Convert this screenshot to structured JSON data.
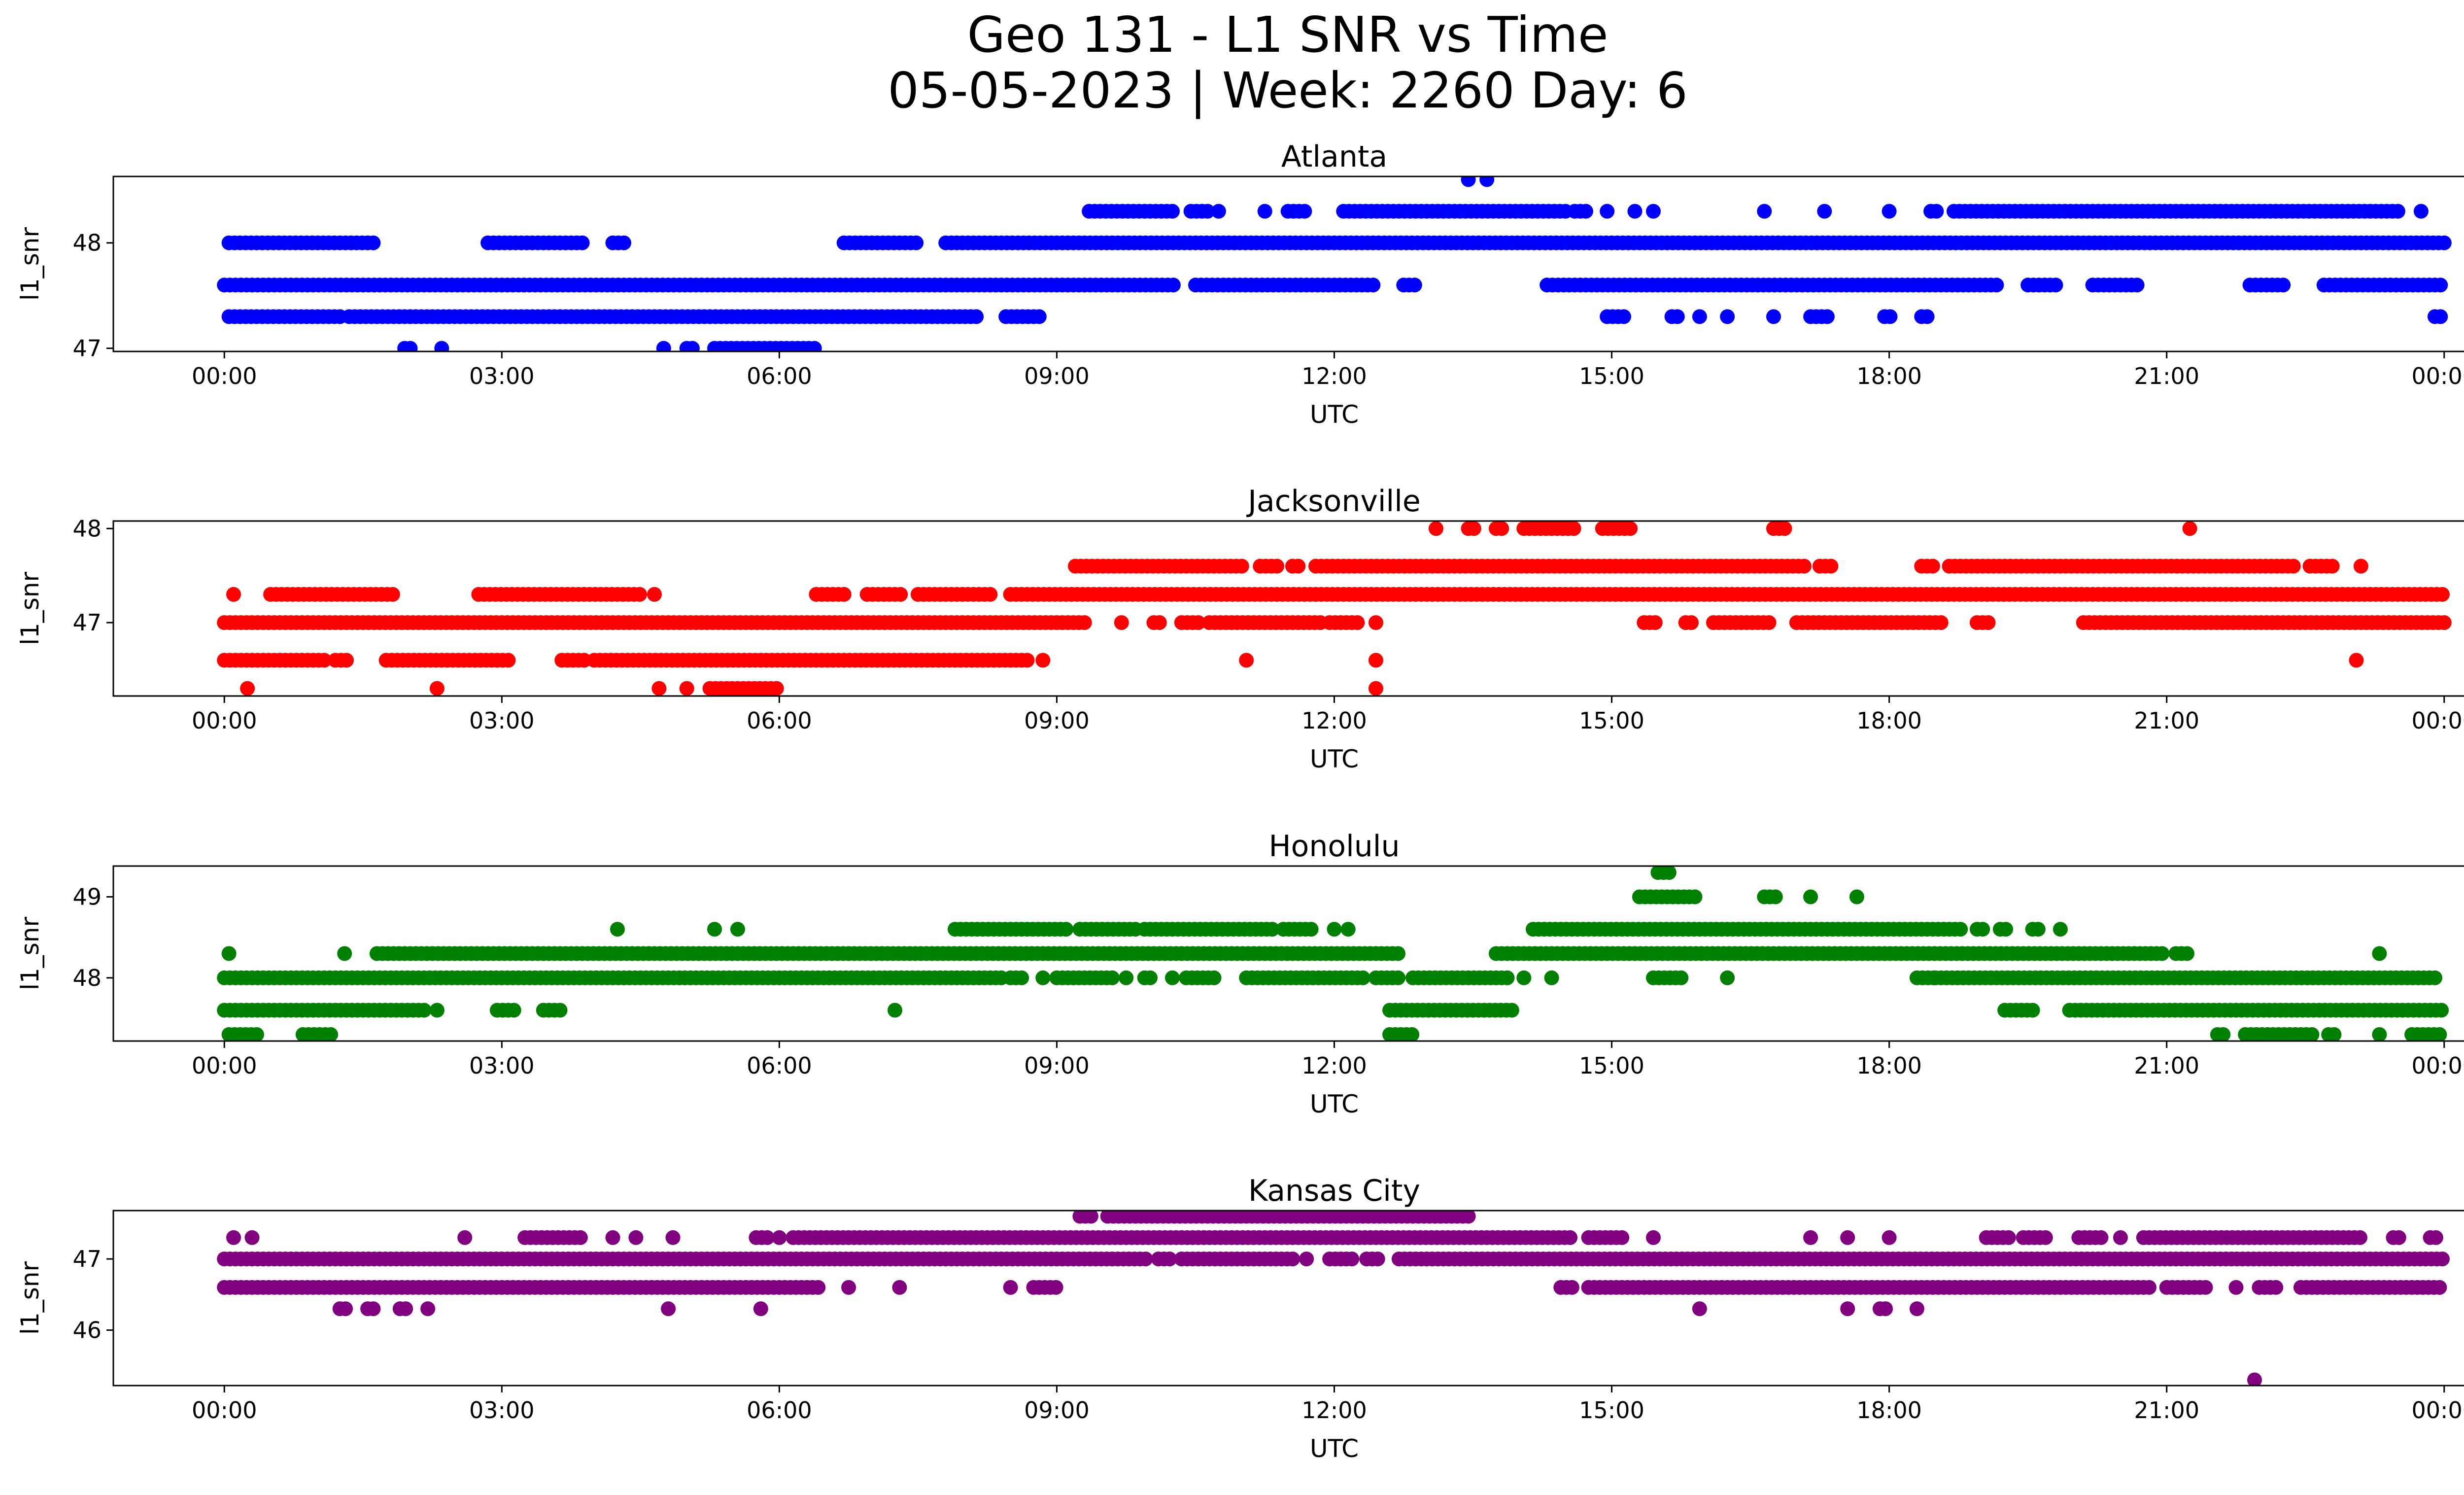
{
  "chart_data": {
    "type": "scatter",
    "title": "Geo 131 - L1 SNR vs Time",
    "subtitle": "05-05-2023 | Week: 2260 Day: 6",
    "xlabel": "UTC",
    "ylabel": "l1_snr",
    "x_tick_labels": [
      "00:00",
      "03:00",
      "06:00",
      "09:00",
      "12:00",
      "15:00",
      "18:00",
      "21:00",
      "00:00"
    ],
    "xlim_hours": [
      -1.2,
      25.2
    ],
    "grid": false,
    "legend": "none",
    "panels": [
      {
        "name": "Atlanta",
        "color": "#0000ff",
        "ylim": [
          46.97,
          48.63
        ],
        "y_ticks": [
          47,
          48
        ],
        "bands": [
          {
            "y": 48.0,
            "segments": [
              [
                0.05,
                1.65
              ],
              [
                2.85,
                3.9
              ],
              [
                4.2,
                4.35
              ],
              [
                6.7,
                7.5
              ],
              [
                7.8,
                24.0
              ]
            ]
          },
          {
            "y": 47.6,
            "segments": [
              [
                0.0,
                10.3
              ],
              [
                10.5,
                12.45
              ],
              [
                12.75,
                12.9
              ],
              [
                14.3,
                19.2
              ],
              [
                19.5,
                19.8
              ],
              [
                20.2,
                20.7
              ],
              [
                21.9,
                22.3
              ],
              [
                22.7,
                24.0
              ]
            ]
          },
          {
            "y": 47.3,
            "segments": [
              [
                0.05,
                1.25
              ],
              [
                1.35,
                7.6
              ],
              [
                7.65,
                8.15
              ],
              [
                8.45,
                8.85
              ],
              [
                14.95,
                15.15
              ],
              [
                15.65,
                15.75
              ],
              [
                15.95,
                16.0
              ],
              [
                16.25,
                16.3
              ],
              [
                16.75,
                16.8
              ],
              [
                17.15,
                17.35
              ],
              [
                17.95,
                18.05
              ],
              [
                18.35,
                18.45
              ],
              [
                23.9,
                24.0
              ]
            ]
          },
          {
            "y": 48.3,
            "segments": [
              [
                9.35,
                10.25
              ],
              [
                10.45,
                10.65
              ],
              [
                10.75,
                10.8
              ],
              [
                11.25,
                11.3
              ],
              [
                11.5,
                11.7
              ],
              [
                12.1,
                14.55
              ],
              [
                14.6,
                14.75
              ],
              [
                14.95,
                15.0
              ],
              [
                15.25,
                15.3
              ],
              [
                15.45,
                15.5
              ],
              [
                16.65,
                16.7
              ],
              [
                17.3,
                17.35
              ],
              [
                18.0,
                18.05
              ],
              [
                18.45,
                18.55
              ],
              [
                18.7,
                23.5
              ],
              [
                23.75,
                23.8
              ]
            ]
          },
          {
            "y": 47.0,
            "segments": [
              [
                1.95,
                2.05
              ],
              [
                2.35,
                2.4
              ],
              [
                4.75,
                4.8
              ],
              [
                5.0,
                5.1
              ],
              [
                5.3,
                6.4
              ]
            ]
          },
          {
            "y": 48.6,
            "segments": [
              [
                13.45,
                13.5
              ],
              [
                13.65,
                13.7
              ]
            ]
          }
        ]
      },
      {
        "name": "Jacksonville",
        "color": "#ff0000",
        "ylim": [
          46.22,
          48.08
        ],
        "y_ticks": [
          47,
          48
        ],
        "bands": [
          {
            "y": 47.0,
            "segments": [
              [
                0.0,
                9.3
              ],
              [
                9.7,
                9.75
              ],
              [
                10.05,
                10.15
              ],
              [
                10.35,
                10.55
              ],
              [
                10.65,
                11.85
              ],
              [
                11.95,
                12.3
              ],
              [
                12.45,
                12.5
              ],
              [
                15.35,
                15.5
              ],
              [
                15.8,
                15.9
              ],
              [
                16.1,
                16.7
              ],
              [
                17.0,
                18.6
              ],
              [
                18.95,
                19.1
              ],
              [
                20.1,
                24.0
              ]
            ]
          },
          {
            "y": 47.3,
            "segments": [
              [
                0.1,
                0.15
              ],
              [
                0.5,
                1.85
              ],
              [
                2.75,
                4.5
              ],
              [
                4.65,
                4.7
              ],
              [
                6.4,
                6.75
              ],
              [
                6.95,
                7.35
              ],
              [
                7.5,
                8.3
              ],
              [
                8.5,
                24.0
              ]
            ]
          },
          {
            "y": 46.6,
            "segments": [
              [
                0.0,
                1.1
              ],
              [
                1.2,
                1.35
              ],
              [
                1.75,
                3.1
              ],
              [
                3.65,
                3.9
              ],
              [
                4.0,
                8.7
              ],
              [
                8.85,
                8.9
              ],
              [
                11.05,
                11.1
              ],
              [
                12.45,
                12.5
              ],
              [
                23.05,
                23.1
              ]
            ]
          },
          {
            "y": 47.6,
            "segments": [
              [
                9.2,
                11.05
              ],
              [
                11.2,
                11.4
              ],
              [
                11.55,
                11.65
              ],
              [
                11.8,
                17.1
              ],
              [
                17.25,
                17.4
              ],
              [
                18.35,
                18.5
              ],
              [
                18.65,
                22.4
              ],
              [
                22.55,
                22.8
              ],
              [
                23.1,
                23.15
              ]
            ]
          },
          {
            "y": 48.0,
            "segments": [
              [
                13.1,
                13.15
              ],
              [
                13.45,
                13.55
              ],
              [
                13.75,
                13.85
              ],
              [
                14.05,
                14.6
              ],
              [
                14.9,
                15.25
              ],
              [
                16.75,
                16.9
              ],
              [
                21.25,
                21.3
              ]
            ]
          },
          {
            "y": 46.3,
            "segments": [
              [
                0.25,
                0.3
              ],
              [
                2.3,
                2.35
              ],
              [
                4.7,
                4.75
              ],
              [
                5.0,
                5.05
              ],
              [
                5.25,
                6.0
              ],
              [
                12.45,
                12.5
              ]
            ]
          }
        ]
      },
      {
        "name": "Honolulu",
        "color": "#008000",
        "ylim": [
          47.22,
          49.38
        ],
        "y_ticks": [
          48,
          49
        ],
        "bands": [
          {
            "y": 48.0,
            "segments": [
              [
                0.0,
                8.4
              ],
              [
                8.5,
                8.65
              ],
              [
                8.85,
                8.9
              ],
              [
                9.0,
                9.65
              ],
              [
                9.75,
                9.8
              ],
              [
                9.95,
                10.05
              ],
              [
                10.25,
                10.3
              ],
              [
                10.4,
                10.75
              ],
              [
                11.05,
                12.35
              ],
              [
                12.45,
                12.7
              ],
              [
                12.85,
                13.9
              ],
              [
                14.05,
                14.1
              ],
              [
                14.35,
                14.4
              ],
              [
                15.45,
                15.8
              ],
              [
                16.25,
                16.3
              ],
              [
                18.3,
                18.5
              ],
              [
                18.5,
                23.9
              ]
            ]
          },
          {
            "y": 48.3,
            "segments": [
              [
                0.05,
                0.1
              ],
              [
                1.3,
                1.35
              ],
              [
                1.65,
                12.7
              ],
              [
                13.75,
                21.0
              ],
              [
                21.1,
                21.25
              ],
              [
                23.3,
                23.35
              ]
            ]
          },
          {
            "y": 47.6,
            "segments": [
              [
                0.0,
                2.2
              ],
              [
                2.3,
                2.35
              ],
              [
                2.95,
                3.15
              ],
              [
                3.45,
                3.65
              ],
              [
                7.25,
                7.3
              ],
              [
                12.6,
                13.95
              ],
              [
                19.25,
                19.6
              ],
              [
                19.95,
                24.0
              ]
            ]
          },
          {
            "y": 48.6,
            "segments": [
              [
                4.25,
                4.3
              ],
              [
                5.3,
                5.35
              ],
              [
                5.55,
                5.6
              ],
              [
                7.9,
                9.15
              ],
              [
                9.25,
                9.85
              ],
              [
                9.95,
                11.35
              ],
              [
                11.45,
                11.75
              ],
              [
                12.0,
                12.05
              ],
              [
                12.15,
                12.2
              ],
              [
                14.15,
                18.8
              ],
              [
                18.95,
                19.05
              ],
              [
                19.2,
                19.3
              ],
              [
                19.55,
                19.65
              ],
              [
                19.85,
                19.9
              ]
            ]
          },
          {
            "y": 47.3,
            "segments": [
              [
                0.05,
                0.35
              ],
              [
                0.85,
                1.15
              ],
              [
                12.6,
                12.85
              ],
              [
                21.55,
                21.65
              ],
              [
                21.85,
                22.6
              ],
              [
                22.75,
                22.85
              ],
              [
                23.3,
                23.35
              ],
              [
                23.65,
                23.95
              ]
            ]
          },
          {
            "y": 49.0,
            "segments": [
              [
                15.3,
                15.95
              ],
              [
                16.65,
                16.8
              ],
              [
                17.15,
                17.2
              ],
              [
                17.65,
                17.7
              ]
            ]
          },
          {
            "y": 49.3,
            "segments": [
              [
                15.5,
                15.65
              ]
            ]
          }
        ]
      },
      {
        "name": "Kansas City",
        "color": "#800080",
        "ylim": [
          45.22,
          47.68
        ],
        "y_ticks": [
          46,
          47
        ],
        "bands": [
          {
            "y": 47.0,
            "segments": [
              [
                0.0,
                10.0
              ],
              [
                10.1,
                10.25
              ],
              [
                10.35,
                11.6
              ],
              [
                11.7,
                11.75
              ],
              [
                11.95,
                12.2
              ],
              [
                12.35,
                12.5
              ],
              [
                12.7,
                24.0
              ]
            ]
          },
          {
            "y": 46.6,
            "segments": [
              [
                0.0,
                6.45
              ],
              [
                6.75,
                6.8
              ],
              [
                7.3,
                7.35
              ],
              [
                8.5,
                8.55
              ],
              [
                8.75,
                9.0
              ],
              [
                14.45,
                14.6
              ],
              [
                14.75,
                20.85
              ],
              [
                21.0,
                21.45
              ],
              [
                21.75,
                21.8
              ],
              [
                22.0,
                22.2
              ],
              [
                22.45,
                24.0
              ]
            ]
          },
          {
            "y": 47.3,
            "segments": [
              [
                0.1,
                0.15
              ],
              [
                0.3,
                0.35
              ],
              [
                2.6,
                2.65
              ],
              [
                3.25,
                3.9
              ],
              [
                4.2,
                4.25
              ],
              [
                4.45,
                4.5
              ],
              [
                4.85,
                4.9
              ],
              [
                5.75,
                5.9
              ],
              [
                6.0,
                6.05
              ],
              [
                6.15,
                14.6
              ],
              [
                14.75,
                15.15
              ],
              [
                15.45,
                15.5
              ],
              [
                17.15,
                17.2
              ],
              [
                17.55,
                17.6
              ],
              [
                18.0,
                18.05
              ],
              [
                19.05,
                19.3
              ],
              [
                19.45,
                19.7
              ],
              [
                20.05,
                20.3
              ],
              [
                20.5,
                20.55
              ],
              [
                20.75,
                23.1
              ],
              [
                23.45,
                23.55
              ],
              [
                23.85,
                23.95
              ]
            ]
          },
          {
            "y": 47.6,
            "segments": [
              [
                9.25,
                9.4
              ],
              [
                9.55,
                13.45
              ]
            ]
          },
          {
            "y": 46.3,
            "segments": [
              [
                1.25,
                1.35
              ],
              [
                1.55,
                1.65
              ],
              [
                1.9,
                2.0
              ],
              [
                2.2,
                2.25
              ],
              [
                4.8,
                4.85
              ],
              [
                5.8,
                5.85
              ],
              [
                15.95,
                16.0
              ],
              [
                17.55,
                17.6
              ],
              [
                17.9,
                18.0
              ],
              [
                18.3,
                18.35
              ]
            ]
          },
          {
            "y": 45.3,
            "segments": [
              [
                21.95,
                22.0
              ]
            ]
          }
        ]
      }
    ]
  }
}
